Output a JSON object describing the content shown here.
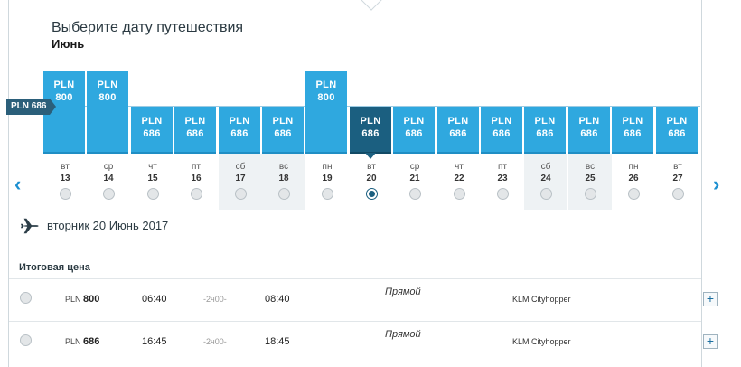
{
  "header": {
    "title": "Выберите дату путешествия",
    "month": "Июнь"
  },
  "price_marker": "PLN 686",
  "currency": "PLN",
  "calendar": {
    "days": [
      {
        "dow": "вт",
        "day": "13",
        "price": "800",
        "weekend": false,
        "selected": false
      },
      {
        "dow": "ср",
        "day": "14",
        "price": "800",
        "weekend": false,
        "selected": false
      },
      {
        "dow": "чт",
        "day": "15",
        "price": "686",
        "weekend": false,
        "selected": false
      },
      {
        "dow": "пт",
        "day": "16",
        "price": "686",
        "weekend": false,
        "selected": false
      },
      {
        "dow": "сб",
        "day": "17",
        "price": "686",
        "weekend": true,
        "selected": false
      },
      {
        "dow": "вс",
        "day": "18",
        "price": "686",
        "weekend": true,
        "selected": false
      },
      {
        "dow": "пн",
        "day": "19",
        "price": "800",
        "weekend": false,
        "selected": false
      },
      {
        "dow": "вт",
        "day": "20",
        "price": "686",
        "weekend": false,
        "selected": true
      },
      {
        "dow": "ср",
        "day": "21",
        "price": "686",
        "weekend": false,
        "selected": false
      },
      {
        "dow": "чт",
        "day": "22",
        "price": "686",
        "weekend": false,
        "selected": false
      },
      {
        "dow": "пт",
        "day": "23",
        "price": "686",
        "weekend": false,
        "selected": false
      },
      {
        "dow": "сб",
        "day": "24",
        "price": "686",
        "weekend": true,
        "selected": false
      },
      {
        "dow": "вс",
        "day": "25",
        "price": "686",
        "weekend": true,
        "selected": false
      },
      {
        "dow": "пн",
        "day": "26",
        "price": "686",
        "weekend": false,
        "selected": false
      },
      {
        "dow": "вт",
        "day": "27",
        "price": "686",
        "weekend": false,
        "selected": false
      }
    ],
    "prev_arrow": "‹",
    "next_arrow": "›"
  },
  "selected_date": "вторник 20 Июнь 2017",
  "results": {
    "total_label": "Итоговая цена",
    "flights": [
      {
        "currency": "PLN",
        "price": "800",
        "depart": "06:40",
        "duration": "-2ч00-",
        "arrive": "08:40",
        "type": "Прямой",
        "airline": "KLM Cityhopper",
        "expand": "+"
      },
      {
        "currency": "PLN",
        "price": "686",
        "depart": "16:45",
        "duration": "-2ч00-",
        "arrive": "18:45",
        "type": "Прямой",
        "airline": "KLM Cityhopper",
        "expand": "+"
      }
    ]
  },
  "colors": {
    "bar": "#2fa8df",
    "bar_selected": "#1b5f80",
    "accent": "#1c8fd0"
  }
}
